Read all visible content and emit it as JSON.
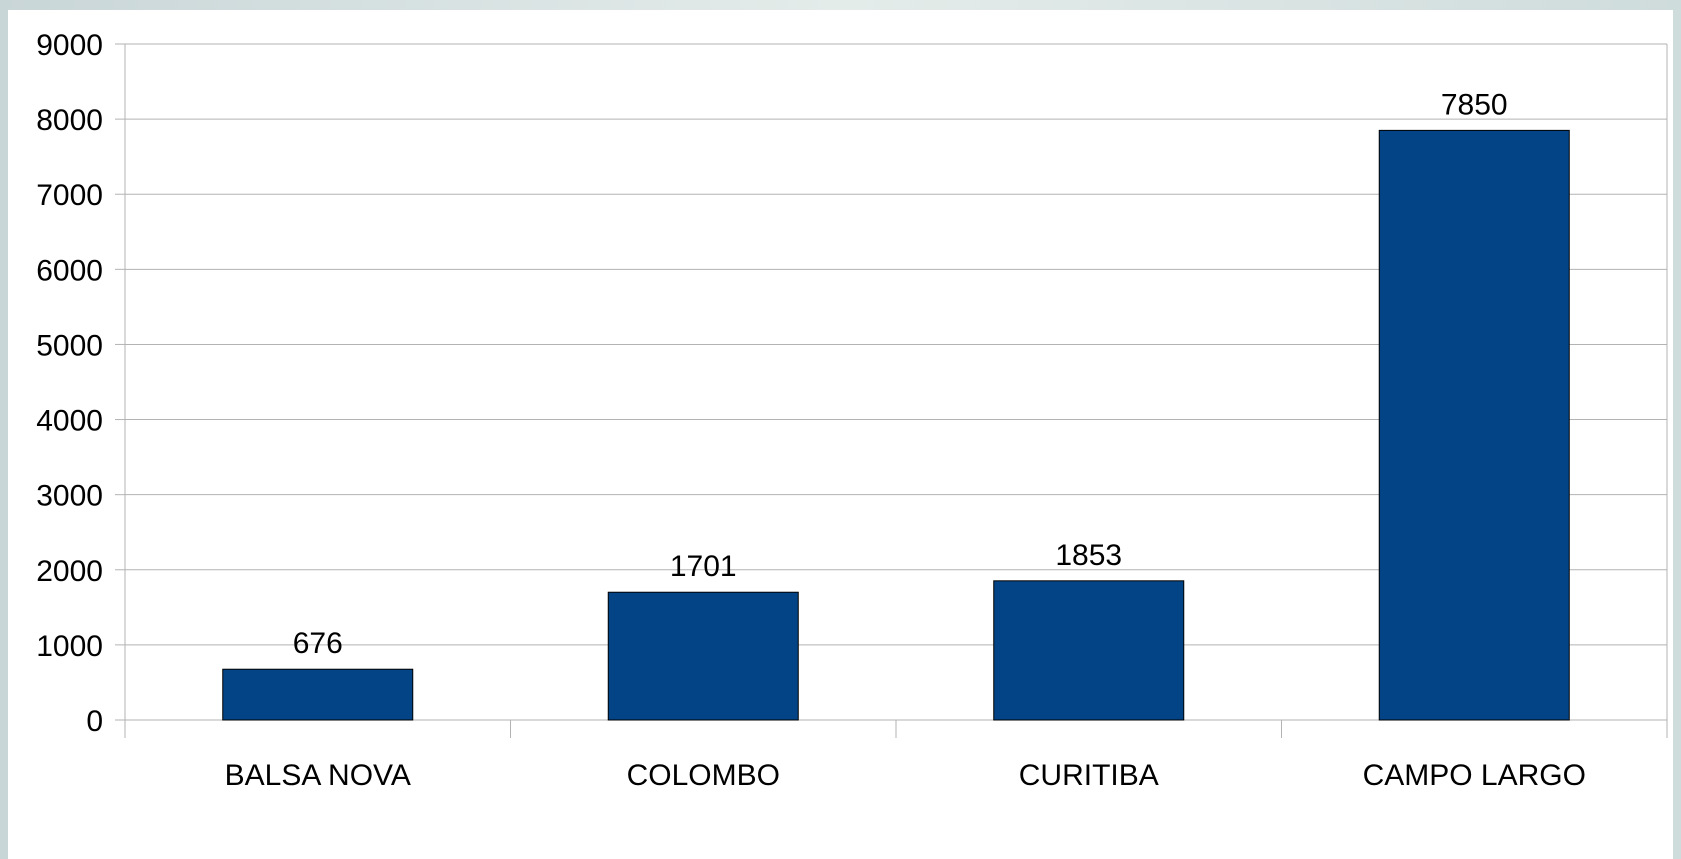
{
  "chart_data": {
    "type": "bar",
    "categories": [
      "BALSA NOVA",
      "COLOMBO",
      "CURITIBA",
      "CAMPO LARGO"
    ],
    "values": [
      676,
      1701,
      1853,
      7850
    ],
    "data_labels": [
      "676",
      "1701",
      "1853",
      "7850"
    ],
    "ylim": [
      0,
      9000
    ],
    "yticks": [
      0,
      1000,
      2000,
      3000,
      4000,
      5000,
      6000,
      7000,
      8000,
      9000
    ],
    "ytick_labels": [
      "0",
      "1000",
      "2000",
      "3000",
      "4000",
      "5000",
      "6000",
      "7000",
      "8000",
      "9000"
    ],
    "grid": true,
    "legend": "none",
    "colors": {
      "bar": "#034486",
      "grid": "#b3b3b3",
      "axis": "#b3b3b3"
    }
  }
}
